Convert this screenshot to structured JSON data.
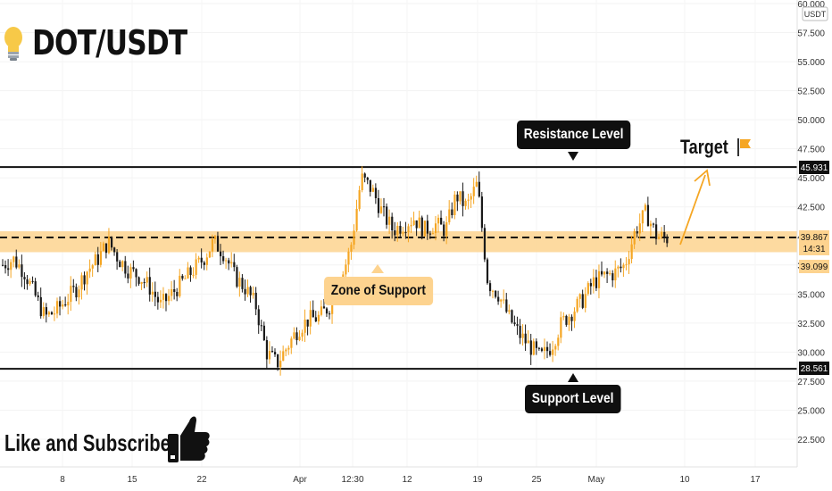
{
  "title": "DOT/USDT",
  "currency": "USDT",
  "annotations": {
    "resistance": "Resistance Level",
    "support": "Support Level",
    "zone": "Zone of Support",
    "target": "Target",
    "cta": "Like and Subscribe"
  },
  "price_labels": {
    "resistance": "45.931",
    "current": "39.867",
    "countdown": "14:31",
    "zone_low": "39.099",
    "support": "28.561"
  },
  "colors": {
    "up": "#f5a623",
    "down": "#1a1a1a",
    "zone": "#fdd38f",
    "dark_box": "#0f0f0f"
  },
  "chart_data": {
    "type": "candlestick",
    "y_ticks": [
      "60.000",
      "57.500",
      "55.000",
      "52.500",
      "50.000",
      "47.500",
      "45.000",
      "42.500",
      "40.000",
      "37.500",
      "35.000",
      "32.500",
      "30.000",
      "27.500",
      "25.000",
      "22.500"
    ],
    "ylim": [
      20.5,
      60.5
    ],
    "x_ticks": [
      "8",
      "15",
      "22",
      "Apr",
      "12:30",
      "12",
      "19",
      "25",
      "May",
      "10",
      "17"
    ],
    "levels": {
      "resistance": 45.931,
      "support": 28.561,
      "current": 39.867,
      "zone": [
        38.6,
        40.4
      ]
    },
    "trend_points": [
      37.5,
      38,
      37,
      35,
      33,
      33.5,
      34.5,
      35.5,
      37,
      38,
      39.5,
      38,
      37,
      36.5,
      35.5,
      34,
      35,
      36,
      37,
      38,
      39.5,
      38.5,
      36.5,
      35.5,
      34,
      30,
      29,
      30.5,
      32,
      32.8,
      33,
      34,
      36,
      39,
      45,
      44,
      42,
      40.5,
      41,
      41.5,
      40.5,
      41,
      40.5,
      43.5,
      42.5,
      44.5,
      36,
      35,
      33,
      31.5,
      30.5,
      29.5,
      30.5,
      32.5,
      33.5,
      34.5,
      36,
      36.5,
      36.8,
      37.5,
      40.5,
      42,
      40,
      39.8
    ]
  }
}
